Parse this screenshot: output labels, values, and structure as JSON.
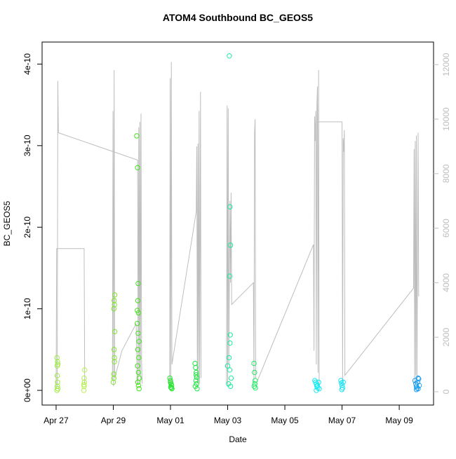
{
  "chart_data": {
    "type": "scatter",
    "title": "ATOM4 Southbound BC_GEOS5",
    "xlabel": "Date",
    "ylabel": "BC_GEOS5",
    "xlim": [
      -0.49,
      13.2
    ],
    "ylim": [
      -1.8e-11,
      4.27e-10
    ],
    "y2lim": [
      -488,
      12828
    ],
    "xticks": [
      {
        "value": 0,
        "label": "Apr 27"
      },
      {
        "value": 2,
        "label": "Apr 29"
      },
      {
        "value": 4,
        "label": "May 01"
      },
      {
        "value": 6,
        "label": "May 03"
      },
      {
        "value": 8,
        "label": "May 05"
      },
      {
        "value": 10,
        "label": "May 07"
      },
      {
        "value": 12,
        "label": "May 09"
      }
    ],
    "yticks": [
      {
        "value": 0,
        "label": "0e+00"
      },
      1e-10,
      2e-10,
      3e-10,
      4e-10
    ],
    "y2ticks": [
      0,
      2000,
      4000,
      6000,
      8000,
      10000,
      12000
    ],
    "series": [
      {
        "color": "#9cec3c",
        "x": [
          0.03,
          0.04,
          0.05,
          0.04,
          0.06,
          0.05,
          0.03,
          0.06,
          0.04
        ],
        "values": [
          0,
          5e-12,
          1e-11,
          1.8e-11,
          3.2e-11,
          3.5e-11,
          4e-11,
          2e-12,
          3e-11
        ]
      },
      {
        "color": "#b4f04c",
        "x": [
          0.97,
          0.98,
          0.99,
          0.98,
          1.0,
          0.97
        ],
        "values": [
          0,
          5e-12,
          1e-11,
          1.5e-11,
          2.5e-11,
          7e-12
        ]
      },
      {
        "color": "#7ee82c",
        "x": [
          2.0,
          2.02,
          2.04,
          2.03,
          2.05,
          2.02,
          2.04,
          2.03,
          2.05,
          2.02,
          2.04
        ],
        "values": [
          1e-11,
          2e-11,
          4e-11,
          5e-11,
          7.2e-11,
          1e-10,
          1.05e-10,
          1.1e-10,
          1.17e-10,
          1.5e-11,
          3.5e-11
        ]
      },
      {
        "color": "#44e21c",
        "x": [
          2.82,
          2.85,
          2.87,
          2.86,
          2.88,
          2.84,
          2.87,
          2.9,
          2.86,
          2.89,
          2.85,
          2.88,
          2.91,
          2.86,
          2.88,
          2.9,
          2.84
        ],
        "values": [
          3.12e-10,
          2.73e-10,
          1.31e-10,
          1.1e-10,
          9.5e-11,
          8.2e-11,
          7e-11,
          6e-11,
          5e-11,
          4e-11,
          3e-11,
          2.2e-11,
          1.5e-11,
          1e-11,
          6e-12,
          2e-12,
          9.8e-11
        ]
      },
      {
        "color": "#22e52a",
        "x": [
          3.98,
          4.0,
          4.02,
          4.04,
          4.01,
          4.03,
          4.05,
          4.0
        ],
        "values": [
          1.5e-11,
          1e-11,
          8e-12,
          6e-12,
          4e-12,
          3e-12,
          2e-12,
          1.2e-11
        ]
      },
      {
        "color": "#1ee742",
        "x": [
          4.86,
          4.88,
          4.9,
          4.92,
          4.89,
          4.91,
          4.87,
          4.93,
          4.9
        ],
        "values": [
          3.3e-11,
          2.8e-11,
          2.2e-11,
          1.6e-11,
          1.2e-11,
          8e-12,
          5e-12,
          2e-12,
          1.9e-11
        ]
      },
      {
        "color": "#18ec9c",
        "x": [
          6.06,
          6.08,
          6.1,
          6.07,
          6.09,
          6.08,
          6.0,
          6.05,
          6.12,
          6.03,
          6.1,
          6.07
        ],
        "values": [
          4.1e-10,
          2.25e-10,
          1.78e-10,
          1.4e-10,
          6.8e-11,
          5.8e-11,
          3e-11,
          4e-11,
          1.5e-11,
          8e-12,
          5e-12,
          2.5e-11
        ]
      },
      {
        "color": "#18ee62",
        "x": [
          6.92,
          6.94,
          6.96,
          6.95,
          6.93,
          6.97
        ],
        "values": [
          3.3e-11,
          2.2e-11,
          1.2e-11,
          8e-12,
          5e-12,
          3e-12
        ]
      },
      {
        "color": "#12eaf0",
        "x": [
          9.05,
          9.08,
          9.1,
          9.12,
          9.15,
          9.18,
          9.2,
          9.1,
          9.14
        ],
        "values": [
          1.2e-11,
          1e-11,
          8e-12,
          5e-12,
          3e-12,
          1e-11,
          2e-12,
          0,
          6e-12
        ]
      },
      {
        "color": "#16e2f4",
        "x": [
          9.96,
          9.98,
          10.0,
          10.02,
          10.04,
          9.99
        ],
        "values": [
          1.2e-11,
          9e-12,
          6e-12,
          3e-12,
          1e-11,
          1e-12
        ]
      },
      {
        "color": "#1a9ef0",
        "x": [
          12.55,
          12.58,
          12.6,
          12.62,
          12.64,
          12.66,
          12.68,
          12.7,
          12.6,
          12.66
        ],
        "values": [
          1.2e-11,
          8e-12,
          5e-12,
          3e-12,
          1e-11,
          1.5e-11,
          1.4e-11,
          6e-12,
          1e-12,
          2e-12
        ]
      },
      {
        "type": "line",
        "axis": "y2",
        "color": "#bebebe",
        "x": [
          0,
          0.02,
          0.98,
          1.0,
          null,
          0.04,
          0.06,
          0.08,
          2.85,
          2.87,
          2.89,
          2.91,
          2.93,
          2.95,
          2.97,
          2.99,
          3.01,
          null,
          1.97,
          1.99,
          2.01,
          2.03,
          2.05,
          2.3,
          2.8,
          2.84,
          null,
          3.97,
          3.99,
          4.01,
          4.03,
          4.05,
          4.9,
          4.92,
          4.94,
          4.96,
          4.98,
          5.0,
          5.02,
          5.05,
          5.07,
          null,
          5.96,
          5.98,
          6.0,
          6.02,
          6.04,
          6.08,
          6.1,
          6.12,
          6.14,
          6.9,
          6.92,
          6.94,
          6.96,
          6.98,
          null,
          7.0,
          9.0,
          9.02,
          9.04,
          9.06,
          9.08,
          9.1,
          9.12,
          9.14,
          9.16,
          9.18,
          9.2,
          null,
          9.1,
          10.0,
          10.02,
          10.04,
          10.06,
          10.08,
          10.1,
          12.5,
          12.52,
          12.54,
          12.56,
          12.58,
          12.6,
          12.62,
          12.66,
          12.68
        ],
        "values": [
          100,
          5250,
          5250,
          300,
          null,
          200,
          11400,
          9500,
          8500,
          300,
          9700,
          600,
          9900,
          400,
          10200,
          1000,
          300,
          null,
          400,
          10300,
          200,
          11800,
          500,
          1500,
          2500,
          300,
          null,
          300,
          11500,
          200,
          12100,
          1000,
          6600,
          9000,
          300,
          9100,
          200,
          10300,
          300,
          11000,
          500,
          null,
          300,
          10500,
          200,
          10400,
          1000,
          7000,
          4000,
          7300,
          3200,
          4000,
          300,
          9500,
          10000,
          500,
          null,
          300,
          5400,
          1500,
          10100,
          9200,
          10300,
          1000,
          10500,
          11200,
          700,
          11800,
          300,
          null,
          9900,
          9900,
          300,
          9300,
          8800,
          9600,
          600,
          3800,
          8900,
          300,
          9200,
          600,
          9400,
          300,
          9500,
          3500
        ]
      }
    ]
  }
}
